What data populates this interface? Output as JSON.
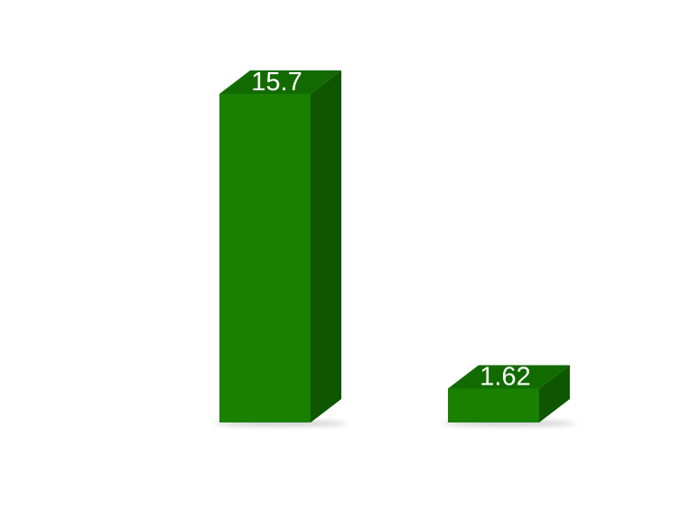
{
  "chart_data": {
    "type": "bar",
    "categories": [
      "",
      ""
    ],
    "values": [
      15.7,
      1.62
    ],
    "data_labels": [
      "15.7",
      "1.62"
    ],
    "title": "",
    "xlabel": "",
    "ylabel": "",
    "ylim": [
      0,
      15.7
    ],
    "grid": false,
    "legend": "none",
    "style": "3d"
  },
  "colors": {
    "front": "#1a8000",
    "top": "#126b00",
    "side": "#0e5600",
    "shadow": "#bdbdbd",
    "label": "#ffffff",
    "background": "#ffffff"
  }
}
